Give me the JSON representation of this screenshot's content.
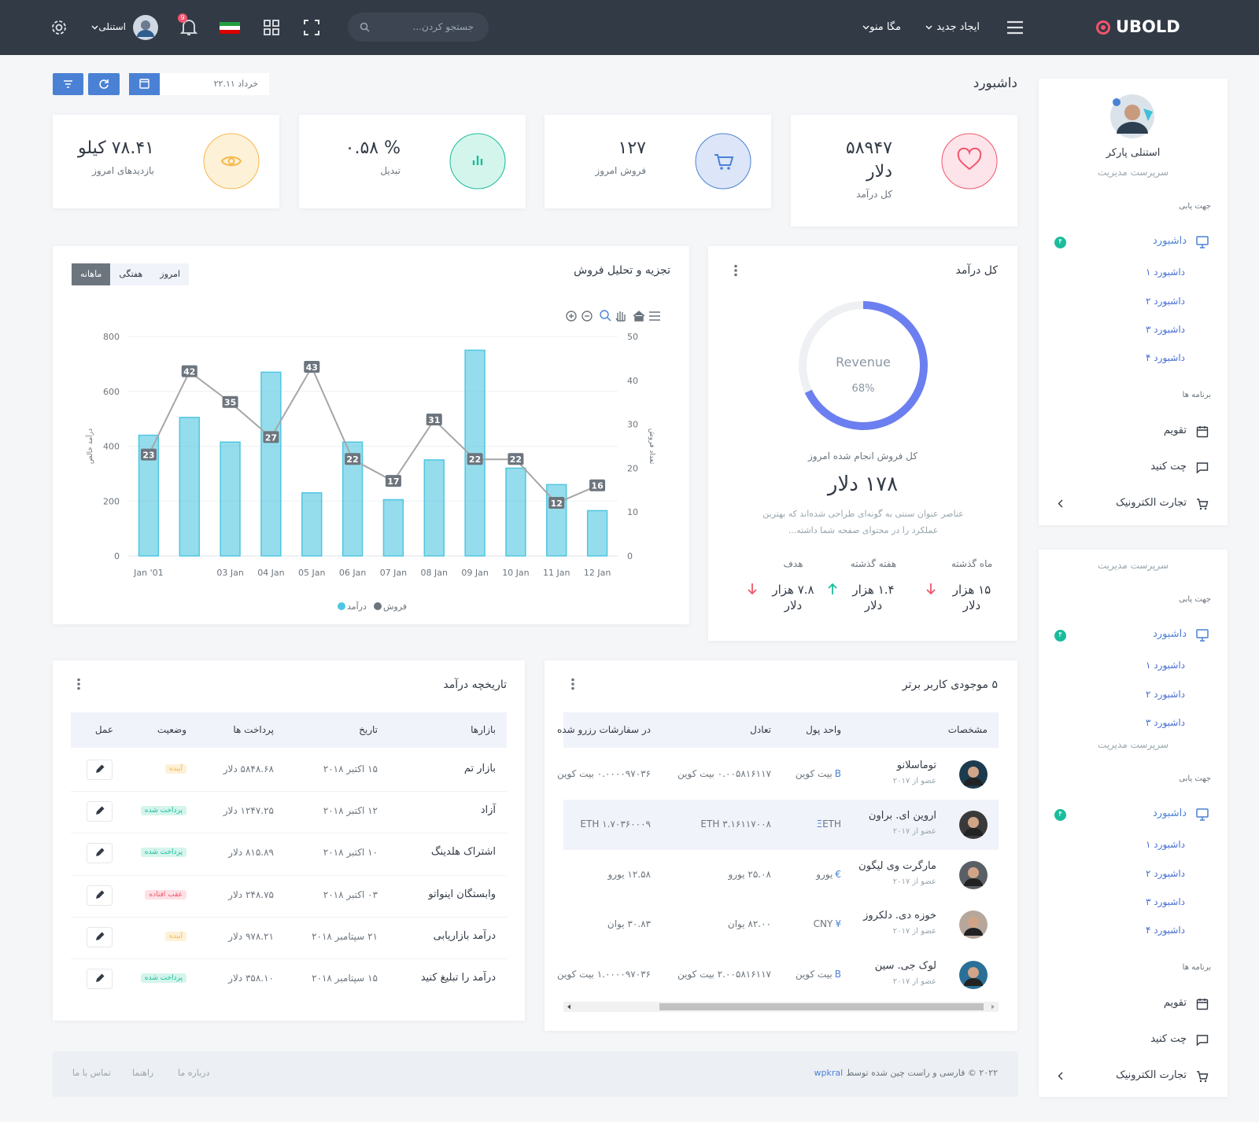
{
  "header": {
    "logo": "UBOLD",
    "menu": [
      "ایجاد جدید",
      "مگا منو"
    ],
    "search_placeholder": "جستجو کردن...",
    "notification_count": "9",
    "user": "استنلی"
  },
  "page": {
    "title": "داشبورد",
    "date": "خرداد ۲۲.۱۱"
  },
  "stats": [
    {
      "value": "۵۸۹۴۷ دلار",
      "label": "کل درآمد",
      "tone": "pink"
    },
    {
      "value": "۱۲۷",
      "label": "فروش امروز",
      "tone": "blue"
    },
    {
      "value": "% ۰.۵۸",
      "label": "تبدیل",
      "tone": "green"
    },
    {
      "value": "۷۸.۴۱ کیلو",
      "label": "بازدیدهای امروز",
      "tone": "yellow"
    }
  ],
  "sidebar": {
    "name": "استنلی پارکر",
    "role": "سرپرست مدیریت",
    "nav_title": "جهت یابی",
    "dashboard": "داشبورد",
    "dashboard_badge": "۴",
    "dashboard_items": [
      "داشبورد ۱",
      "داشبورد ۲",
      "داشبورد ۳",
      "داشبورد ۴"
    ],
    "apps_title": "برنامه ها",
    "apps": [
      "تقویم",
      "چت کنید",
      "تجارت الکترونیک"
    ]
  },
  "sales_chart": {
    "type": "bar",
    "title": "تجزیه و تحلیل فروش",
    "tabs": [
      "امروز",
      "هفتگی",
      "ماهانه"
    ],
    "active_tab": 2,
    "categories": [
      "Jan '01",
      null,
      "03 Jan",
      "04 Jan",
      "05 Jan",
      "06 Jan",
      "07 Jan",
      "08 Jan",
      "09 Jan",
      "10 Jan",
      "11 Jan",
      "12 Jan"
    ],
    "series": [
      {
        "name": "درآمد",
        "type": "bar",
        "color": "#4fc6e1",
        "values": [
          440,
          505,
          415,
          670,
          230,
          415,
          205,
          350,
          750,
          320,
          260,
          165
        ]
      },
      {
        "name": "فروش",
        "type": "line",
        "axis": "y2",
        "color": "#a6a6a6",
        "label_color": "#6c757d",
        "values": [
          23,
          42,
          35,
          27,
          43,
          22,
          17,
          31,
          22,
          22,
          12,
          16
        ]
      }
    ],
    "ylim": [
      0,
      800
    ],
    "yticks": [
      0,
      200,
      400,
      600,
      800
    ],
    "y2lim": [
      0,
      50
    ],
    "y2ticks": [
      0,
      10,
      20,
      30,
      40,
      50
    ],
    "ylabel": "درآمد خالص",
    "y2label": "تعداد فروش",
    "grid": true
  },
  "revenue": {
    "title": "کل درآمد",
    "donut": {
      "label": "Revenue",
      "value": 68,
      "value_label": "68%",
      "color": "#6c7ff0"
    },
    "subtitle": "کل فروش انجام شده امروز",
    "amount": "۱۷۸ دلار",
    "description": "عناصر عنوان سنتی به گونه‌ای طراحی شده‌اند که بهترین عملکرد را در محتوای صفحه شما داشته...",
    "stats": [
      {
        "label": "ماه گذشته",
        "value": "۱۵ هزار دلار",
        "trend": "down"
      },
      {
        "label": "هفته گذشته",
        "value": "۱.۴ هزار دلار",
        "trend": "up"
      },
      {
        "label": "هدف",
        "value": "۷.۸ هزار دلار",
        "trend": "down"
      }
    ]
  },
  "revenue_history": {
    "title": "تاریخچه درآمد",
    "columns": [
      "بازارها",
      "تاریخ",
      "پرداخت ها",
      "وضعیت",
      "عمل"
    ],
    "rows": [
      {
        "market": "بازار تم",
        "date": "۱۵ اکتبر ۲۰۱۸",
        "payment": "۵۸۴۸.۶۸ دلار",
        "status": "آینده",
        "tone": "warning"
      },
      {
        "market": "آزاد",
        "date": "۱۲ اکتبر ۲۰۱۸",
        "payment": "۱۲۴۷.۲۵ دلار",
        "status": "پرداخت شده",
        "tone": "success"
      },
      {
        "market": "اشتراک هلدینگ",
        "date": "۱۰ اکتبر ۲۰۱۸",
        "payment": "۸۱۵.۸۹ دلار",
        "status": "پرداخت شده",
        "tone": "success"
      },
      {
        "market": "وابستگان اینواتو",
        "date": "۰۳ اکتبر ۲۰۱۸",
        "payment": "۲۴۸.۷۵ دلار",
        "status": "عقب افتاده",
        "tone": "danger"
      },
      {
        "market": "درآمد بازاریابی",
        "date": "۲۱ سپتامبر ۲۰۱۸",
        "payment": "۹۷۸.۲۱ دلار",
        "status": "آینده",
        "tone": "warning"
      },
      {
        "market": "درآمد را تبلیغ کنید",
        "date": "۱۵ سپتامبر ۲۰۱۸",
        "payment": "۳۵۸.۱۰ دلار",
        "status": "پرداخت شده",
        "tone": "success"
      }
    ]
  },
  "top_balances": {
    "title": "۵ موجودی کاربر برتر",
    "columns": [
      "مشخصات",
      "واحد پول",
      "تعادل",
      "در سفارشات رزرو شده"
    ],
    "rows": [
      {
        "name": "توماسلانو",
        "since": "عضو از ۲۰۱۷",
        "symbol": "B",
        "currency": "بیت کوین",
        "balance": "۰.۰۰۵۸۱۶۱۱۷ بیت کوین",
        "reserved": "۰.۰۰۰۰۹۷۰۳۶ بیت کوین"
      },
      {
        "name": "اروین ای. براون",
        "since": "عضو از ۲۰۱۷",
        "symbol": "Ξ",
        "currency": "ETH",
        "balance": "ETH ۳.۱۶۱۱۷۰۰۸",
        "reserved": "ETH ۱.۷۰۳۶۰۰۰۹"
      },
      {
        "name": "مارگرت وی لیگون",
        "since": "عضو از ۲۰۱۷",
        "symbol": "€",
        "currency": "یورو",
        "balance": "۲۵.۰۸ یورو",
        "reserved": "۱۲.۵۸ یورو"
      },
      {
        "name": "خوزه دی. دلکروز",
        "since": "عضو از ۲۰۱۷",
        "symbol": "¥",
        "currency": "CNY",
        "balance": "۸۲.۰۰ یوان",
        "reserved": "۳۰.۸۳ یوان"
      },
      {
        "name": "لوک جی. سین",
        "since": "عضو از ۲۰۱۷",
        "symbol": "B",
        "currency": "بیت کوین",
        "balance": "۲.۰۰۵۸۱۶۱۱۷ بیت کوین",
        "reserved": "۱.۰۰۰۰۹۷۰۳۶ بیت کوین"
      }
    ]
  },
  "footer": {
    "copyright": "۲۰۲۲ © فارسی و راست چین شده توسط",
    "author": "wpkral",
    "links": [
      "درباره ما",
      "راهنما",
      "تماس با ما"
    ]
  }
}
